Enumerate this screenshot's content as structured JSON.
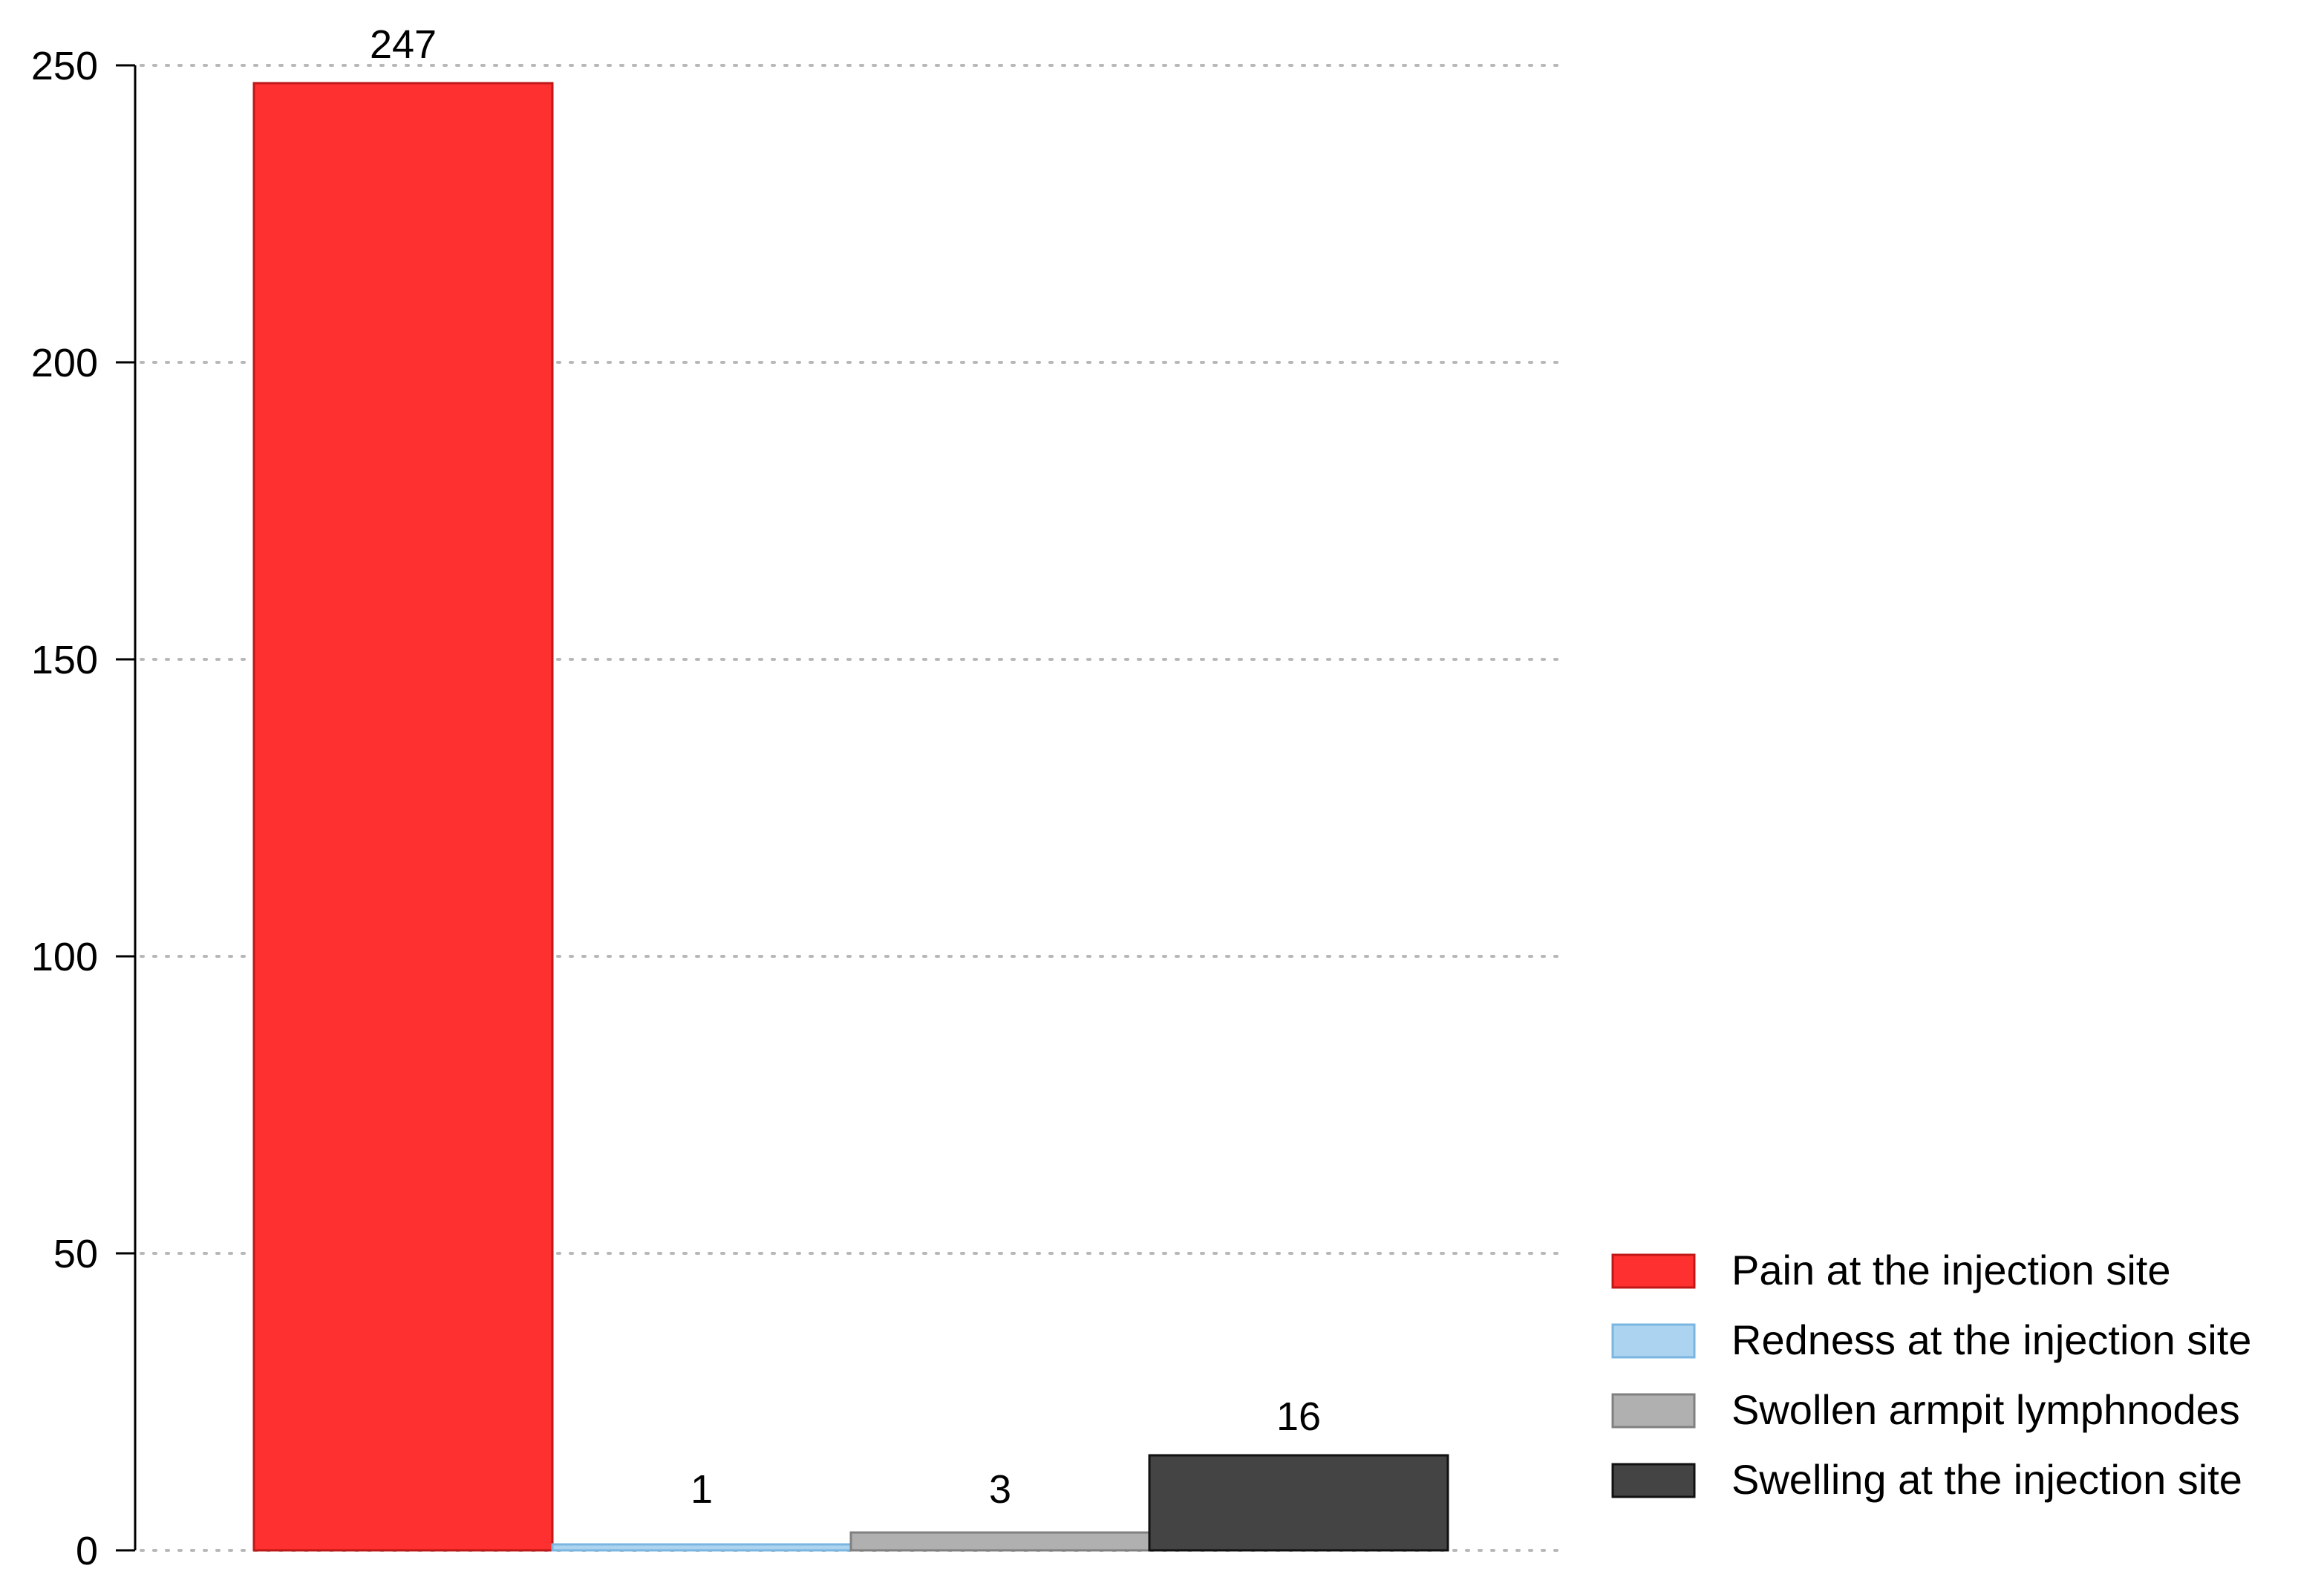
{
  "chart_data": {
    "type": "bar",
    "title": "",
    "xlabel": "",
    "ylabel": "",
    "ylim": [
      0,
      250
    ],
    "yticks": [
      0,
      50,
      100,
      150,
      200,
      250
    ],
    "grid": "horizontal-dotted",
    "legend_position": "bottom-right",
    "categories": [
      "Pain at the injection site",
      "Redness at the injection site",
      "Swollen armpit lymphnodes",
      "Swelling at the injection site"
    ],
    "values": [
      247,
      1,
      3,
      16
    ],
    "data_labels": [
      "247",
      "1",
      "3",
      "16"
    ],
    "colors": [
      "#ff3030",
      "#acd4f0",
      "#b0b0b0",
      "#444444"
    ],
    "edge_colors": [
      "#c01818",
      "#7ab6e0",
      "#808080",
      "#111111"
    ]
  }
}
